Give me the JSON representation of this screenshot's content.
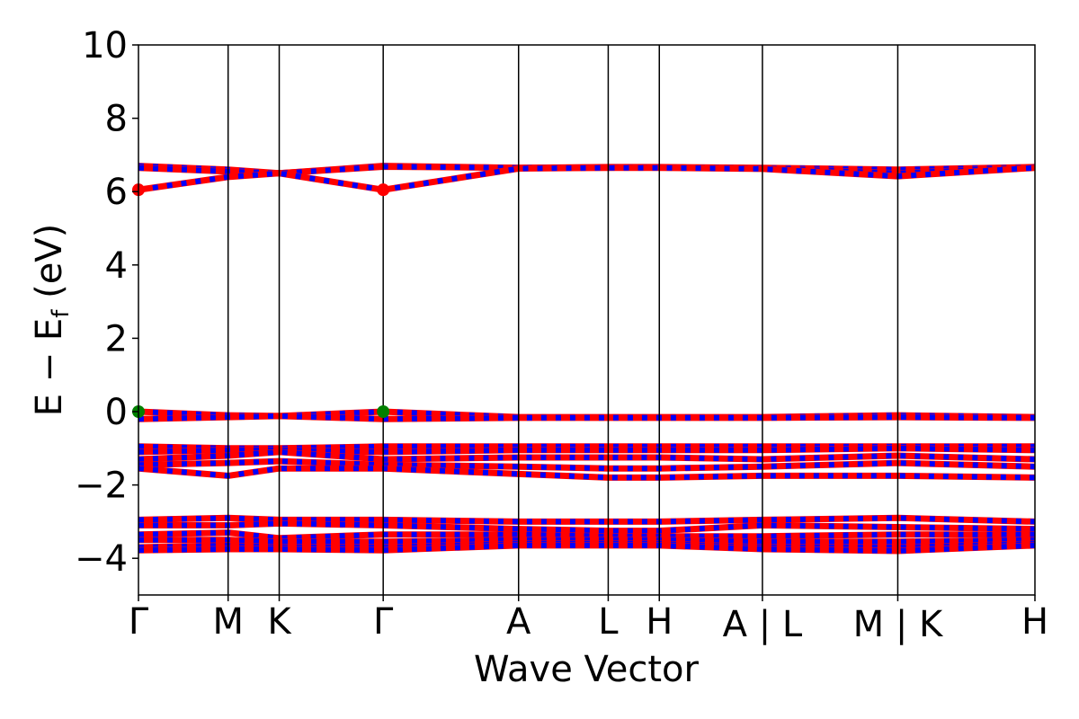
{
  "chart_data": {
    "type": "line",
    "title": "",
    "xlabel": "Wave Vector",
    "ylabel": "E − E",
    "ylabel_sub": "f",
    "ylabel_unit": " (eV)",
    "ylim": [
      -5,
      10
    ],
    "yticks": [
      {
        "value": 10,
        "label": "10"
      },
      {
        "value": 8,
        "label": "8"
      },
      {
        "value": 6,
        "label": "6"
      },
      {
        "value": 4,
        "label": "4"
      },
      {
        "value": 2,
        "label": "2"
      },
      {
        "value": 0,
        "label": "0"
      },
      {
        "value": -2,
        "label": "−2"
      },
      {
        "value": -4,
        "label": "−4"
      }
    ],
    "xlim": [
      0,
      10
    ],
    "kpoints": [
      {
        "pos": 0.0,
        "label": "Γ"
      },
      {
        "pos": 1.0,
        "label": "M"
      },
      {
        "pos": 1.57,
        "label": "K"
      },
      {
        "pos": 2.73,
        "label": "Γ"
      },
      {
        "pos": 4.24,
        "label": "A"
      },
      {
        "pos": 5.24,
        "label": "L"
      },
      {
        "pos": 5.81,
        "label": "H"
      },
      {
        "pos": 6.96,
        "label": "A | L"
      },
      {
        "pos": 8.47,
        "label": "M | K"
      },
      {
        "pos": 10.0,
        "label": "H"
      }
    ],
    "colors": {
      "primary": "#ff0000",
      "secondary": "#0000ff",
      "cbm": "#ff0000",
      "vbm": "#008000"
    },
    "bands": [
      {
        "x": [
          0,
          1.0,
          1.57,
          2.73,
          4.24,
          5.24,
          5.81,
          6.96,
          8.47,
          10.0
        ],
        "y": [
          6.7,
          6.6,
          6.5,
          6.7,
          6.65,
          6.67,
          6.67,
          6.65,
          6.6,
          6.67
        ]
      },
      {
        "x": [
          0,
          1.0,
          1.57,
          2.73,
          4.24,
          5.24,
          5.81,
          6.96,
          8.47,
          10.0
        ],
        "y": [
          6.65,
          6.55,
          6.5,
          6.68,
          6.65,
          6.66,
          6.66,
          6.64,
          6.5,
          6.67
        ]
      },
      {
        "x": [
          0,
          1.0,
          1.57,
          2.73,
          4.24,
          5.24,
          5.81,
          6.96,
          8.47,
          10.0
        ],
        "y": [
          6.05,
          6.4,
          6.5,
          6.05,
          6.63,
          6.65,
          6.65,
          6.62,
          6.42,
          6.65
        ]
      },
      {
        "x": [
          0,
          1.0,
          1.57,
          2.73,
          4.24,
          5.24,
          5.81,
          6.96,
          8.47,
          10.0
        ],
        "y": [
          0.0,
          -0.1,
          -0.12,
          0.0,
          -0.15,
          -0.15,
          -0.15,
          -0.15,
          -0.1,
          -0.15
        ]
      },
      {
        "x": [
          0,
          1.0,
          1.57,
          2.73,
          4.24,
          5.24,
          5.81,
          6.96,
          8.47,
          10.0
        ],
        "y": [
          -0.2,
          -0.15,
          -0.12,
          -0.2,
          -0.17,
          -0.17,
          -0.17,
          -0.17,
          -0.15,
          -0.17
        ]
      },
      {
        "x": [
          0,
          1.0,
          1.57,
          2.73,
          4.24,
          5.24,
          5.81,
          6.96,
          8.47,
          10.0
        ],
        "y": [
          -0.95,
          -1.0,
          -1.0,
          -0.95,
          -0.95,
          -0.95,
          -0.95,
          -0.95,
          -0.95,
          -0.95
        ]
      },
      {
        "x": [
          0,
          1.0,
          1.57,
          2.73,
          4.24,
          5.24,
          5.81,
          6.96,
          8.47,
          10.0
        ],
        "y": [
          -1.1,
          -1.05,
          -1.05,
          -1.1,
          -1.05,
          -1.05,
          -1.05,
          -1.05,
          -1.0,
          -1.05
        ]
      },
      {
        "x": [
          0,
          1.0,
          1.57,
          2.73,
          4.24,
          5.24,
          5.81,
          6.96,
          8.47,
          10.0
        ],
        "y": [
          -1.3,
          -1.2,
          -1.1,
          -1.3,
          -1.25,
          -1.25,
          -1.25,
          -1.3,
          -1.2,
          -1.3
        ]
      },
      {
        "x": [
          0,
          1.0,
          1.57,
          2.73,
          4.24,
          5.24,
          5.81,
          6.96,
          8.47,
          10.0
        ],
        "y": [
          -1.45,
          -1.4,
          -1.35,
          -1.45,
          -1.5,
          -1.55,
          -1.55,
          -1.5,
          -1.4,
          -1.5
        ]
      },
      {
        "x": [
          0,
          1.0,
          1.57,
          2.73,
          4.24,
          5.24,
          5.81,
          6.96,
          8.47,
          10.0
        ],
        "y": [
          -1.55,
          -1.75,
          -1.55,
          -1.55,
          -1.7,
          -1.8,
          -1.8,
          -1.75,
          -1.75,
          -1.8
        ]
      },
      {
        "x": [
          0,
          1.0,
          1.57,
          2.73,
          4.24,
          5.24,
          5.81,
          6.96,
          8.47,
          10.0
        ],
        "y": [
          -2.95,
          -2.9,
          -2.95,
          -2.95,
          -3.0,
          -3.0,
          -3.0,
          -2.95,
          -2.9,
          -3.0
        ]
      },
      {
        "x": [
          0,
          1.0,
          1.57,
          2.73,
          4.24,
          5.24,
          5.81,
          6.96,
          8.47,
          10.0
        ],
        "y": [
          -3.1,
          -3.1,
          -3.05,
          -3.1,
          -3.2,
          -3.25,
          -3.25,
          -3.1,
          -3.15,
          -3.2
        ]
      },
      {
        "x": [
          0,
          1.0,
          1.57,
          2.73,
          4.24,
          5.24,
          5.81,
          6.96,
          8.47,
          10.0
        ],
        "y": [
          -3.35,
          -3.3,
          -3.45,
          -3.35,
          -3.35,
          -3.4,
          -3.4,
          -3.4,
          -3.35,
          -3.35
        ]
      },
      {
        "x": [
          0,
          1.0,
          1.57,
          2.73,
          4.24,
          5.24,
          5.81,
          6.96,
          8.47,
          10.0
        ],
        "y": [
          -3.5,
          -3.5,
          -3.55,
          -3.55,
          -3.5,
          -3.5,
          -3.5,
          -3.55,
          -3.55,
          -3.5
        ]
      },
      {
        "x": [
          0,
          1.0,
          1.57,
          2.73,
          4.24,
          5.24,
          5.81,
          6.96,
          8.47,
          10.0
        ],
        "y": [
          -3.7,
          -3.65,
          -3.7,
          -3.7,
          -3.6,
          -3.6,
          -3.6,
          -3.7,
          -3.7,
          -3.6
        ]
      },
      {
        "x": [
          0,
          1.0,
          1.57,
          2.73,
          4.24,
          5.24,
          5.81,
          6.96,
          8.47,
          10.0
        ],
        "y": [
          -3.78,
          -3.75,
          -3.75,
          -3.78,
          -3.65,
          -3.65,
          -3.65,
          -3.75,
          -3.8,
          -3.65
        ]
      }
    ],
    "markers": [
      {
        "x": 0.0,
        "y": 6.05,
        "kind": "cbm"
      },
      {
        "x": 2.73,
        "y": 6.05,
        "kind": "cbm"
      },
      {
        "x": 0.0,
        "y": 0.0,
        "kind": "vbm"
      },
      {
        "x": 2.73,
        "y": 0.0,
        "kind": "vbm"
      }
    ]
  }
}
